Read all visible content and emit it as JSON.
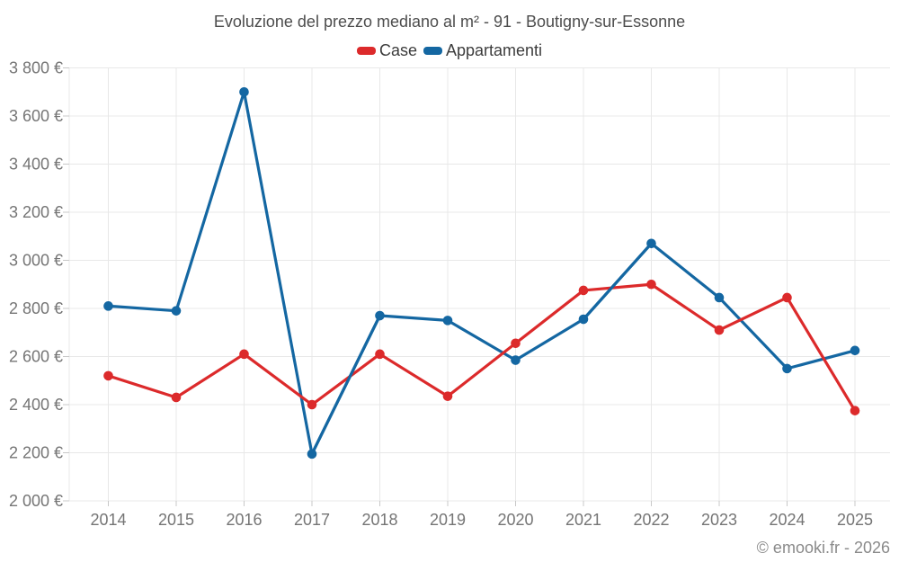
{
  "title": "Evoluzione del prezzo mediano al m² - 91 - Boutigny-sur-Essonne",
  "footer": "© emooki.fr - 2026",
  "chart_data": {
    "type": "line",
    "x": [
      2014,
      2015,
      2016,
      2017,
      2018,
      2019,
      2020,
      2021,
      2022,
      2023,
      2024,
      2025
    ],
    "series": [
      {
        "name": "Case",
        "color": "#dc2a2b",
        "values": [
          2520,
          2430,
          2610,
          2400,
          2610,
          2435,
          2655,
          2875,
          2900,
          2710,
          2845,
          2375
        ]
      },
      {
        "name": "Appartamenti",
        "color": "#1467a2",
        "values": [
          2810,
          2790,
          3700,
          2195,
          2770,
          2750,
          2585,
          2755,
          3070,
          2845,
          2550,
          2625
        ]
      }
    ],
    "ylim": [
      2000,
      3800
    ],
    "ytick_step": 200,
    "y_unit": "€",
    "grid": true,
    "legend_position": "top"
  }
}
